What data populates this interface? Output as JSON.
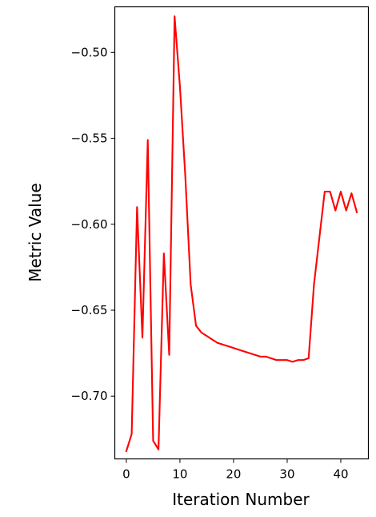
{
  "chart_data": {
    "type": "line",
    "title": "",
    "xlabel": "Iteration Number",
    "ylabel": "Metric Value",
    "xlim": [
      -2.15,
      45.15
    ],
    "ylim": [
      -0.7365,
      -0.4735
    ],
    "xticks": [
      0,
      10,
      20,
      30,
      40
    ],
    "yticks": [
      -0.7,
      -0.65,
      -0.6,
      -0.55,
      -0.5
    ],
    "xtick_labels": [
      "0",
      "10",
      "20",
      "30",
      "40"
    ],
    "ytick_labels": [
      "−0.70",
      "−0.65",
      "−0.60",
      "−0.55",
      "−0.50"
    ],
    "grid": false,
    "series": [
      {
        "color": "#ff0000",
        "x": [
          0,
          1,
          2,
          3,
          4,
          5,
          6,
          7,
          8,
          9,
          10,
          11,
          12,
          13,
          14,
          15,
          16,
          17,
          18,
          19,
          20,
          21,
          22,
          23,
          24,
          25,
          26,
          27,
          28,
          29,
          30,
          31,
          32,
          33,
          34,
          35,
          36,
          37,
          38,
          39,
          40,
          41,
          42,
          43
        ],
        "y": [
          -0.732,
          -0.722,
          -0.59,
          -0.666,
          -0.551,
          -0.726,
          -0.731,
          -0.617,
          -0.676,
          -0.479,
          -0.52,
          -0.572,
          -0.635,
          -0.659,
          -0.663,
          -0.665,
          -0.667,
          -0.669,
          -0.67,
          -0.671,
          -0.672,
          -0.673,
          -0.674,
          -0.675,
          -0.676,
          -0.677,
          -0.677,
          -0.678,
          -0.679,
          -0.679,
          -0.679,
          -0.68,
          -0.679,
          -0.679,
          -0.678,
          -0.635,
          -0.608,
          -0.581,
          -0.581,
          -0.592,
          -0.581,
          -0.592,
          -0.582,
          -0.593
        ]
      }
    ]
  }
}
